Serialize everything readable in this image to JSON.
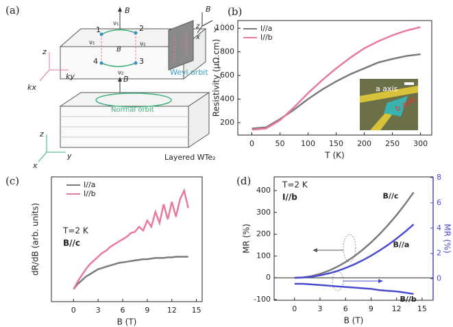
{
  "diagram": {
    "panel": "(a)",
    "B": "B",
    "n1": "1",
    "n2": "2",
    "n3": "3",
    "n4": "4",
    "v1": "ν₁",
    "v2": "ν₂",
    "z": "z",
    "y": "y",
    "x": "x",
    "kx": "kx",
    "ky": "ky",
    "weyl": "Weyl orbit",
    "normal": "Normal orbit",
    "layered": "Layered WTe₂"
  },
  "chart_data": [
    {
      "type": "line",
      "title": "(b)",
      "xlabel": "T (K)",
      "ylabel": "Resistivity (μΩ.cm)",
      "x": [
        0,
        25,
        50,
        75,
        100,
        125,
        150,
        175,
        200,
        225,
        250,
        275,
        300
      ],
      "series": [
        {
          "name": "I//a",
          "color": "#7a7a7a",
          "values": [
            150,
            160,
            230,
            310,
            400,
            480,
            550,
            610,
            660,
            710,
            740,
            765,
            780
          ]
        },
        {
          "name": "I//b",
          "color": "#e8799a",
          "values": [
            140,
            150,
            220,
            330,
            450,
            560,
            660,
            750,
            830,
            890,
            940,
            980,
            1010
          ]
        }
      ],
      "xlim": [
        -25,
        320
      ],
      "xticks": [
        0,
        50,
        100,
        150,
        200,
        250,
        300
      ],
      "ylim": [
        95,
        1065
      ],
      "yticks": [
        200,
        400,
        600,
        800,
        1000
      ],
      "legend": "upper left",
      "annotations": [
        "a axis",
        "b axis"
      ]
    },
    {
      "type": "line",
      "title": "(c)",
      "xlabel": "B (T)",
      "ylabel": "dR/dB (arb. units)",
      "x": [
        0,
        0.5,
        1,
        1.5,
        2,
        2.5,
        3,
        3.5,
        4,
        4.5,
        5,
        5.5,
        6,
        6.5,
        7,
        7.5,
        8,
        8.5,
        9,
        9.5,
        10,
        10.5,
        11,
        11.5,
        12,
        12.5,
        13,
        13.5,
        14
      ],
      "series": [
        {
          "name": "I//a",
          "color": "#7a7a7a",
          "values": [
            0.1,
            0.14,
            0.17,
            0.2,
            0.22,
            0.24,
            0.26,
            0.27,
            0.28,
            0.29,
            0.3,
            0.31,
            0.315,
            0.32,
            0.325,
            0.33,
            0.335,
            0.34,
            0.34,
            0.345,
            0.35,
            0.35,
            0.35,
            0.355,
            0.355,
            0.36,
            0.36,
            0.36,
            0.36
          ]
        },
        {
          "name": "I//b",
          "color": "#e8799a",
          "values": [
            0.1,
            0.16,
            0.21,
            0.26,
            0.3,
            0.33,
            0.36,
            0.39,
            0.41,
            0.44,
            0.46,
            0.48,
            0.5,
            0.52,
            0.55,
            0.56,
            0.6,
            0.57,
            0.65,
            0.6,
            0.72,
            0.63,
            0.78,
            0.66,
            0.8,
            0.68,
            0.82,
            0.89,
            0.75
          ]
        }
      ],
      "xlim": [
        -2.7,
        15.7
      ],
      "xticks": [
        0,
        3,
        6,
        9,
        12,
        15
      ],
      "ylim": [
        0,
        1
      ],
      "legend": "upper left",
      "annotations": [
        "T=2 K",
        "B//c"
      ]
    },
    {
      "type": "line",
      "title": "(d)",
      "xlabel": "B (T)",
      "ylabel": "MR (%)",
      "y2label": "MR (%)",
      "y2color": "#4a4ad0",
      "x": [
        0,
        1,
        2,
        3,
        4,
        5,
        6,
        7,
        8,
        9,
        10,
        11,
        12,
        13,
        14
      ],
      "series": [
        {
          "name": "B//c",
          "color": "#7a7a7a",
          "values": [
            0,
            2,
            8,
            18,
            32,
            50,
            72,
            98,
            128,
            162,
            200,
            242,
            288,
            338,
            392
          ]
        },
        {
          "name": "B//a",
          "color": "#4a4ad0",
          "values": [
            0,
            1,
            5,
            11,
            20,
            31,
            45,
            61,
            80,
            101,
            125,
            151,
            180,
            211,
            245
          ]
        },
        {
          "name": "B//b",
          "color": "#4a4ad0",
          "axis": "y2",
          "values": [
            -0.4,
            -0.4,
            -0.45,
            -0.5,
            -0.55,
            -0.6,
            -0.65,
            -0.7,
            -0.75,
            -0.8,
            -0.9,
            -0.95,
            -1.0,
            -1.1,
            -1.2
          ]
        }
      ],
      "xlim": [
        -2.4,
        16.3
      ],
      "xticks": [
        0,
        3,
        6,
        9,
        12,
        15
      ],
      "ylim": [
        -103,
        463
      ],
      "yticks": [
        -100,
        0,
        100,
        200,
        300,
        400
      ],
      "y2lim": [
        -1.7,
        8.05
      ],
      "y2ticks": [
        0,
        2,
        4,
        6,
        8
      ],
      "zero_line": true,
      "annotations": [
        "T=2 K",
        "I//b"
      ]
    }
  ]
}
